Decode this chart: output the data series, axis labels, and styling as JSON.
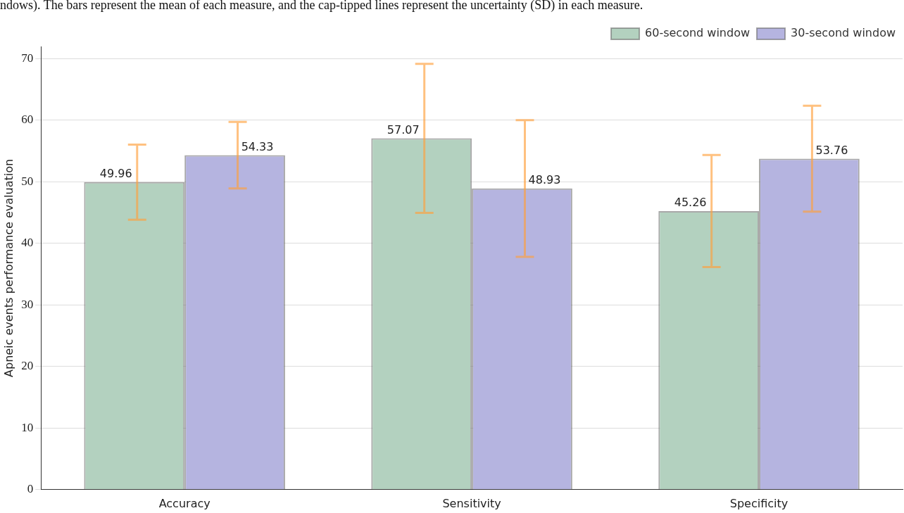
{
  "chart_data": {
    "type": "bar",
    "annotations": [
      "ndows). The bars represent the mean of each measure, and the cap-tipped lines represent the uncertainty (SD) in each measure."
    ],
    "ylabel": "Apneic events performance evaluation",
    "categories": [
      "Accuracy",
      "Sensitivity",
      "Specificity"
    ],
    "series": [
      {
        "name": "60-second window",
        "color": "#b3d1bf",
        "values": [
          49.96,
          57.07,
          45.26
        ],
        "errors": [
          6.1,
          12.1,
          9.1
        ]
      },
      {
        "name": "30-second window",
        "color": "#b5b4e0",
        "values": [
          54.33,
          48.93,
          53.76
        ],
        "errors": [
          5.4,
          11.1,
          8.6
        ]
      }
    ],
    "ylim": [
      0,
      72
    ],
    "yticks": [
      0,
      10,
      20,
      30,
      40,
      50,
      60,
      70
    ],
    "grid": "y",
    "legend": "top right",
    "data_labels": true
  }
}
